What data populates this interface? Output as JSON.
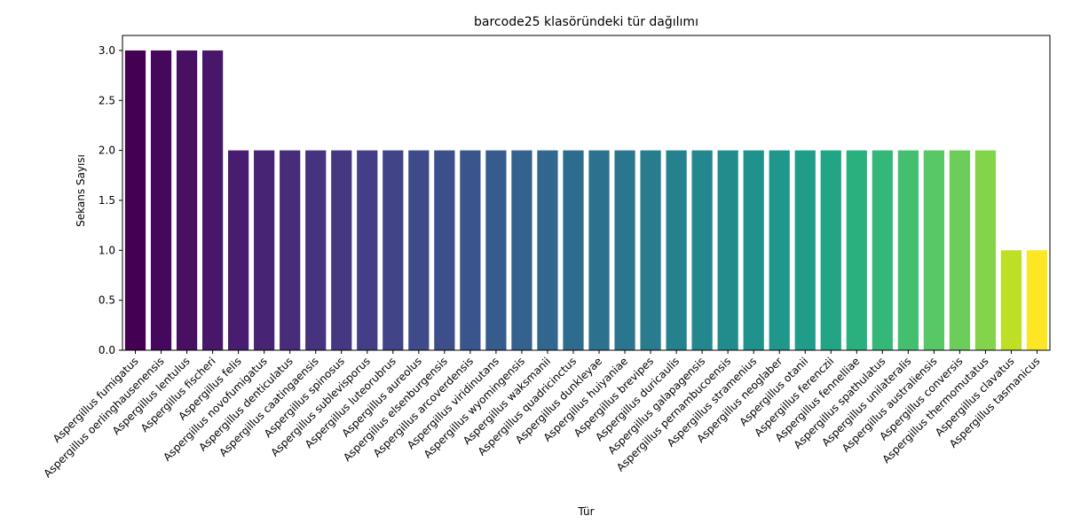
{
  "chart_data": {
    "type": "bar",
    "title": "barcode25 klasöründeki tür dağılımı",
    "xlabel": "Tür",
    "ylabel": "Sekans Sayısı",
    "ylim": [
      0,
      3.15
    ],
    "yticks": [
      "0.0",
      "0.5",
      "1.0",
      "1.5",
      "2.0",
      "2.5",
      "3.0"
    ],
    "grid": false,
    "palette": "viridis",
    "categories": [
      "Aspergillus fumigatus",
      "Aspergillus oerlinghausenensis",
      "Aspergillus lentulus",
      "Aspergillus fischeri",
      "Aspergillus felis",
      "Aspergillus novofumigatus",
      "Aspergillus denticulatus",
      "Aspergillus caatingaensis",
      "Aspergillus spinosus",
      "Aspergillus sublevisporus",
      "Aspergillus luteorubrus",
      "Aspergillus aureolus",
      "Aspergillus elsenburgensis",
      "Aspergillus arcoverdensis",
      "Aspergillus viridinutans",
      "Aspergillus wyomingensis",
      "Aspergillus waksmanii",
      "Aspergillus quadricinctus",
      "Aspergillus dunkleyae",
      "Aspergillus huiyaniae",
      "Aspergillus brevipes",
      "Aspergillus duricaulis",
      "Aspergillus galapagensis",
      "Aspergillus pernambucoensis",
      "Aspergillus stramenius",
      "Aspergillus neoglaber",
      "Aspergillus otanii",
      "Aspergillus ferenczii",
      "Aspergillus fennelliae",
      "Aspergillus spathulatus",
      "Aspergillus unilateralis",
      "Aspergillus australiensis",
      "Aspergillus conversis",
      "Aspergillus thermomutatus",
      "Aspergillus clavatus",
      "Aspergillus tasmanicus"
    ],
    "values": [
      3,
      3,
      3,
      3,
      2,
      2,
      2,
      2,
      2,
      2,
      2,
      2,
      2,
      2,
      2,
      2,
      2,
      2,
      2,
      2,
      2,
      2,
      2,
      2,
      2,
      2,
      2,
      2,
      2,
      2,
      2,
      2,
      2,
      2,
      1,
      1
    ],
    "colors": [
      "#440154",
      "#46085c",
      "#471063",
      "#481769",
      "#481d6f",
      "#482475",
      "#472c7a",
      "#46327e",
      "#453781",
      "#433e85",
      "#414487",
      "#3e4a89",
      "#3c4f8a",
      "#39558c",
      "#365c8d",
      "#34618d",
      "#31668e",
      "#2e6c8e",
      "#2c718e",
      "#2a768e",
      "#287c8e",
      "#26818e",
      "#24878e",
      "#228c8d",
      "#20928c",
      "#1f978b",
      "#1f9d8a",
      "#21a585",
      "#2ab07f",
      "#35b779",
      "#44bf70",
      "#58c765",
      "#6ccd5a",
      "#84d44b",
      "#bddf26",
      "#fde725"
    ]
  }
}
